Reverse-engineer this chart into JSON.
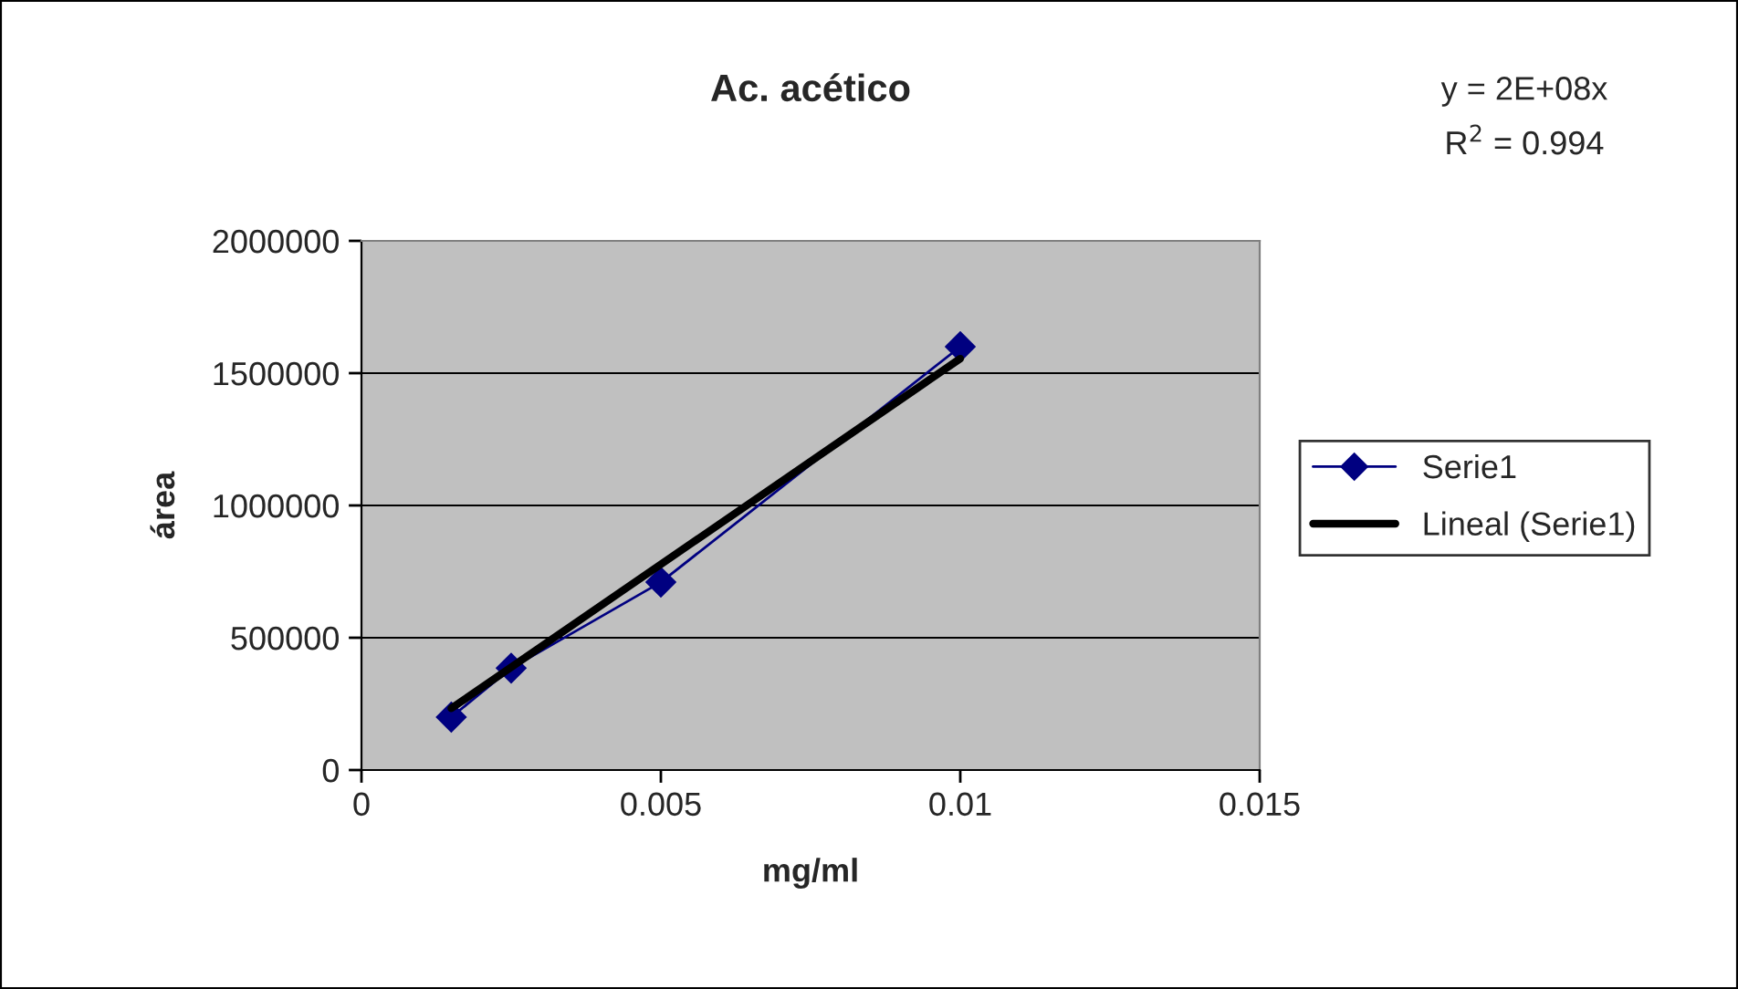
{
  "chart_data": {
    "type": "line",
    "title": "Ac. acético",
    "xlabel": "mg/ml",
    "ylabel": "área",
    "annotations": [
      "y = 2E+08x",
      "R$^{2}$ = 0.994"
    ],
    "series": [
      {
        "name": "Serie1",
        "color": "#000080",
        "x": [
          0.0015,
          0.0025,
          0.005,
          0.01
        ],
        "values": [
          200000,
          385000,
          710000,
          1600000
        ],
        "marker": "diamond"
      },
      {
        "name": "Lineal (Serie1)",
        "color": "#000000",
        "x": [
          0.0015,
          0.01
        ],
        "values": [
          233000,
          1555000
        ],
        "marker": "none"
      }
    ],
    "xlim": [
      0,
      0.015
    ],
    "xticks": [
      0,
      0.005,
      0.01,
      0.015
    ],
    "ylim": [
      0,
      2000000
    ],
    "yticks": [
      0,
      500000,
      1000000,
      1500000,
      2000000
    ],
    "grid": "y",
    "legend": "right"
  }
}
